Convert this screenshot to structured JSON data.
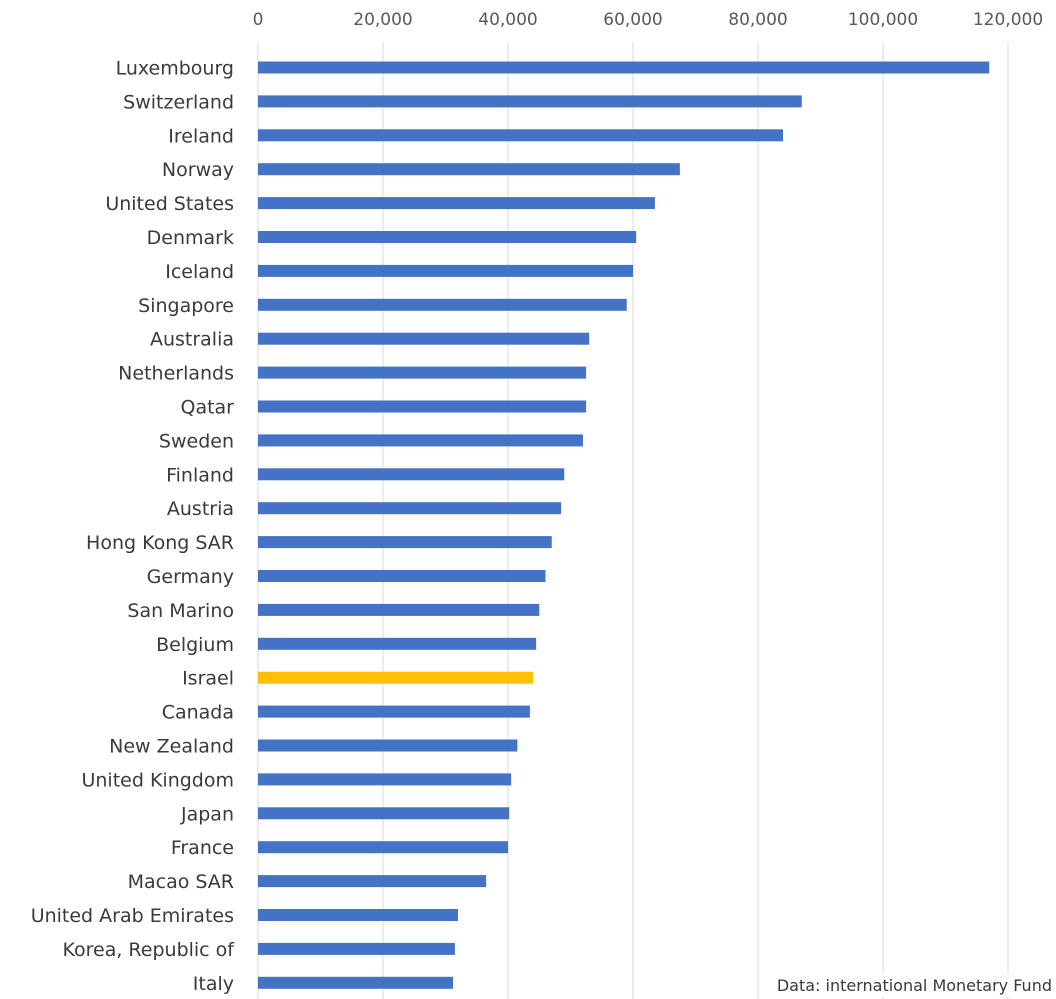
{
  "chart_data": {
    "type": "bar",
    "orientation": "horizontal",
    "categories": [
      "Luxembourg",
      "Switzerland",
      "Ireland",
      "Norway",
      "United States",
      "Denmark",
      "Iceland",
      "Singapore",
      "Australia",
      "Netherlands",
      "Qatar",
      "Sweden",
      "Finland",
      "Austria",
      "Hong Kong SAR",
      "Germany",
      "San Marino",
      "Belgium",
      "Israel",
      "Canada",
      "New Zealand",
      "United Kingdom",
      "Japan",
      "France",
      "Macao SAR",
      "United Arab Emirates",
      "Korea, Republic of",
      "Italy"
    ],
    "values": [
      117000,
      87000,
      84000,
      67500,
      63500,
      60500,
      60000,
      59000,
      53000,
      52500,
      52500,
      52000,
      49000,
      48500,
      47000,
      46000,
      45000,
      44500,
      44000,
      43500,
      41500,
      40500,
      40200,
      40000,
      36500,
      32000,
      31500,
      31200
    ],
    "highlight": {
      "category": "Israel",
      "color": "#FFC000"
    },
    "bar_color": "#4472C4",
    "xlim": [
      0,
      120000
    ],
    "x_ticks": [
      0,
      20000,
      40000,
      60000,
      80000,
      100000,
      120000
    ],
    "x_tick_labels": [
      "0",
      "20,000",
      "40,000",
      "60,000",
      "80,000",
      "100,000",
      "120,000"
    ],
    "x_axis_position": "top",
    "grid": true,
    "title": "",
    "xlabel": "",
    "ylabel": ""
  },
  "source_note": "Data: international Monetary Fund"
}
